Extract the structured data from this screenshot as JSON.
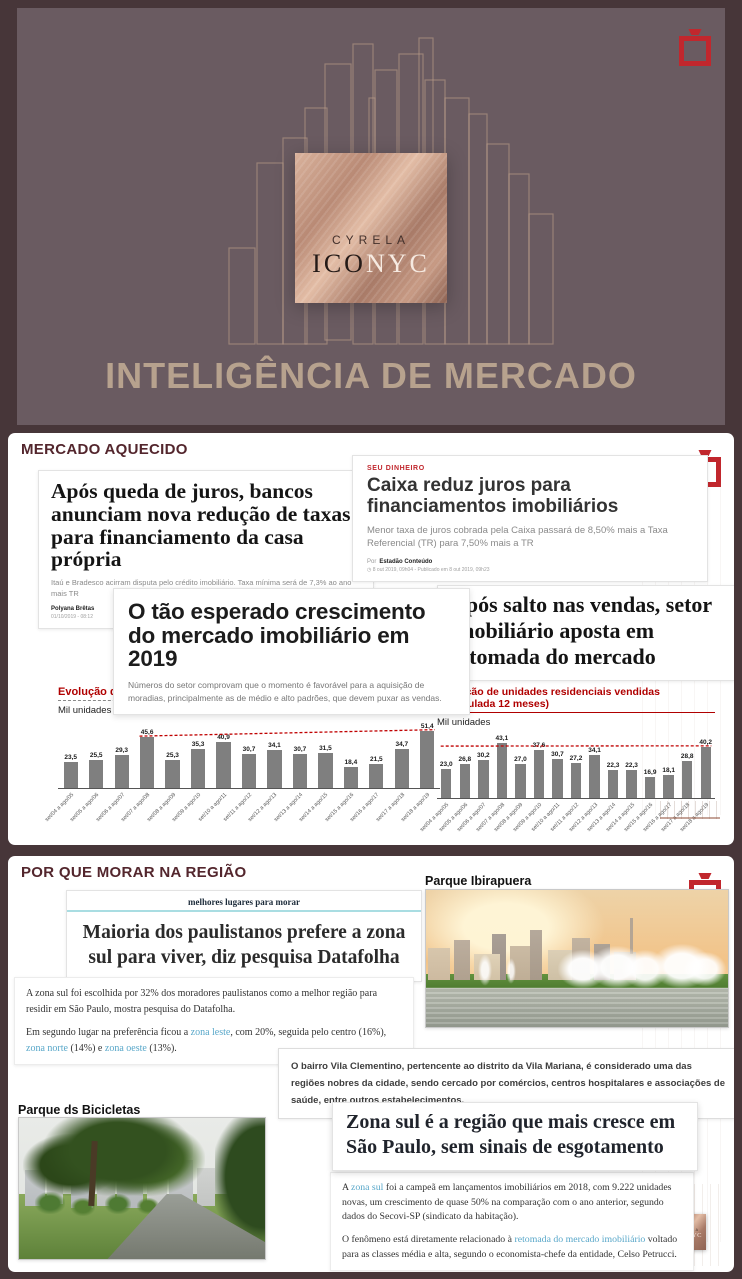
{
  "hero": {
    "title": "INTELIGÊNCIA DE MERCADO",
    "logo": {
      "brand": "CYRELA",
      "name_dark": "ICO",
      "name_light": "NYC"
    }
  },
  "mercado": {
    "heading": "MERCADO AQUECIDO",
    "article_bancos": {
      "headline": "Após queda de juros, bancos anunciam nova redução de taxas para financiamento da casa própria",
      "deck": "Itaú e Bradesco acirram disputa pelo crédito imobiliário. Taxa mínima será de 7,3% ao ano mais TR",
      "byline": "Polyana Brêtas",
      "dateline": "01/10/2019 - 08:12"
    },
    "article_caixa": {
      "kicker": "SEU DINHEIRO",
      "headline": "Caixa reduz juros para financiamentos imobiliários",
      "deck": "Menor taxa de juros cobrada pela Caixa passará de 8,50% mais a Taxa Referencial (TR) para 7,50% mais a TR",
      "byline_prefix": "Por",
      "byline": "Estadão Conteúdo",
      "dateline": "◷ 8 out 2019, 09h04 - Publicado em 8 out 2019, 09h23"
    },
    "article_crescimento": {
      "headline": "O tão esperado crescimento do mercado imobiliário em 2019",
      "deck": "Números do setor comprovam que o momento é favorável para a aquisição de moradias, principalmente as de médio e alto padrões, que devem puxar as vendas."
    },
    "article_salto": {
      "headline": "Após salto nas vendas, setor imobiliário aposta em retomada do mercado"
    }
  },
  "chart_data": [
    {
      "type": "bar",
      "title": "Evolução de unidades residenciais lançadas (acumulada 12 meses)",
      "ylabel": "Mil unidades",
      "xlabel": "",
      "categories": [
        "set/04 a ago/05",
        "set/05 a ago/06",
        "set/06 a ago/07",
        "set/07 a ago/08",
        "set/08 a ago/09",
        "set/09 a ago/10",
        "set/10 a ago/11",
        "set/11 a ago/12",
        "set/12 a ago/13",
        "set/13 a ago/14",
        "set/14 a ago/15",
        "set/15 a ago/16",
        "set/16 a ago/17",
        "set/17 a ago/18",
        "set/18 a ago/19"
      ],
      "values": [
        23.5,
        25.5,
        29.3,
        45.6,
        25.3,
        35.3,
        40.9,
        30.7,
        34.1,
        30.7,
        31.5,
        18.4,
        21.5,
        34.7,
        51.4
      ],
      "values_display": [
        "23,5",
        "25,5",
        "29,3",
        "45,6",
        "25,3",
        "35,3",
        "40,9",
        "30,7",
        "34,1",
        "30,7",
        "31,5",
        "18,4",
        "21,5",
        "34,7",
        "51,4"
      ],
      "ylim": [
        0,
        52
      ],
      "grid": false,
      "legend": "none",
      "bar_color": "#7f7f7f",
      "trend_color": "#c00000",
      "trend": {
        "from_index": 3,
        "to_index": 14,
        "from_value": 45.6,
        "to_value": 51.4
      }
    },
    {
      "type": "bar",
      "title": "Evolução de unidades residenciais vendidas (acumulada 12 meses)",
      "ylabel": "Mil unidades",
      "xlabel": "",
      "categories": [
        "set/04 a ago/05",
        "set/05 a ago/06",
        "set/06 a ago/07",
        "set/07 a ago/08",
        "set/08 a ago/09",
        "set/09 a ago/10",
        "set/10 a ago/11",
        "set/11 a ago/12",
        "set/12 a ago/13",
        "set/13 a ago/14",
        "set/14 a ago/15",
        "set/15 a ago/16",
        "set/16 a ago/17",
        "set/17 a ago/18",
        "set/18 a ago/19"
      ],
      "values": [
        23.0,
        26.8,
        30.2,
        43.1,
        27.0,
        37.6,
        30.7,
        27.2,
        34.1,
        22.3,
        22.3,
        16.9,
        18.1,
        28.8,
        40.2
      ],
      "values_display": [
        "23,0",
        "26,8",
        "30,2",
        "43,1",
        "27,0",
        "37,6",
        "30,7",
        "27,2",
        "34,1",
        "22,3",
        "22,3",
        "16,9",
        "18,1",
        "28,8",
        "40,2"
      ],
      "ylim": [
        0,
        44
      ],
      "grid": false,
      "legend": "none",
      "bar_color": "#7f7f7f",
      "trend_color": "#c00000",
      "trend": {
        "from_index": 0,
        "to_index": 14,
        "from_value": 40.0,
        "to_value": 40.2
      }
    }
  ],
  "regiao": {
    "heading": "POR QUE MORAR NA REGIÃO",
    "parque_ibirapuera_label": "Parque Ibirapuera",
    "parque_bicicletas_label": "Parque ds Bicicletas",
    "article_datafolha": {
      "kicker": "melhores lugares para morar",
      "headline": "Maioria dos paulistanos prefere a zona sul para viver, diz pesquisa Datafolha",
      "p1": [
        {
          "t": "A zona sul foi escolhida por 32% dos moradores paulistanos como a melhor região para residir em São Paulo, mostra pesquisa do Datafolha."
        }
      ],
      "p2": [
        {
          "t": "Em segundo lugar na preferência ficou a "
        },
        {
          "t": "zona leste",
          "link": true
        },
        {
          "t": ", com 20%, seguida pelo centro (16%), "
        },
        {
          "t": "zona norte",
          "link": true
        },
        {
          "t": " (14%) e "
        },
        {
          "t": "zona oeste",
          "link": true
        },
        {
          "t": " (13%)."
        }
      ]
    },
    "vila_clementino": [
      {
        "t": "O bairro Vila Clementino, pertencente ao distrito da Vila Mariana, é considerado uma das regiões nobres da cidade, sendo cercado por comércios, centros hospitalares e associações de saúde, entre outros estabelecimentos."
      }
    ],
    "article_zonasul": {
      "headline": "Zona sul é a região que mais cresce em São Paulo, sem sinais de esgotamento",
      "p1": [
        {
          "t": "A "
        },
        {
          "t": "zona sul",
          "link": true
        },
        {
          "t": " foi a campeã em lançamentos imobiliários em 2018, com 9.222 unidades novas, um crescimento de quase 50% na comparação com o ano anterior, segundo dados do Secovi-SP (sindicato da habitação)."
        }
      ],
      "p2": [
        {
          "t": "O fenômeno está diretamente relacionado à "
        },
        {
          "t": "retomada do mercado imobiliário",
          "link": true
        },
        {
          "t": " voltado para as classes média e alta, segundo o economista-chefe da entidade, Celso Petrucci."
        }
      ]
    }
  },
  "colors": {
    "page_bg": "#473639",
    "hero_bg": "#6a5b61",
    "title_tan": "#b7a28e",
    "accent_red": "#c1272d",
    "chart_red": "#b00000",
    "bar_gray": "#7f7f7f",
    "link_blue": "#58a7c9",
    "heading_maroon": "#53262d",
    "teal_rule": "#a9dde2"
  }
}
